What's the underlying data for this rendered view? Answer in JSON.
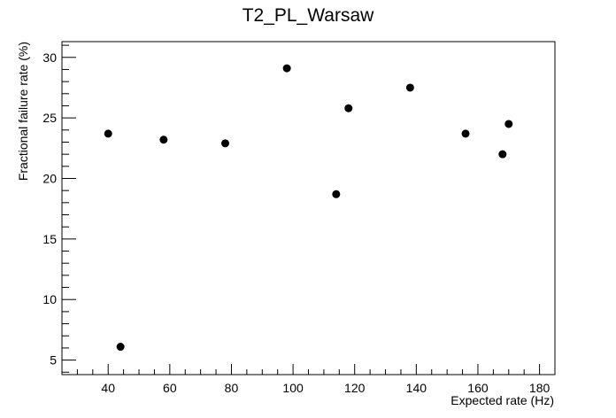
{
  "chart_data": {
    "type": "scatter",
    "title": "T2_PL_Warsaw",
    "xlabel": "Expected rate (Hz)",
    "ylabel": "Fractional failure rate (%)",
    "xlim": [
      25,
      185
    ],
    "ylim": [
      3.8,
      31.3
    ],
    "x_ticks": [
      40,
      60,
      80,
      100,
      120,
      140,
      160,
      180
    ],
    "y_ticks": [
      5,
      10,
      15,
      20,
      25,
      30
    ],
    "grid": false,
    "marker_color": "#000000",
    "points": [
      {
        "x": 40,
        "y": 23.7
      },
      {
        "x": 44,
        "y": 6.1
      },
      {
        "x": 58,
        "y": 23.2
      },
      {
        "x": 78,
        "y": 22.9
      },
      {
        "x": 98,
        "y": 29.1
      },
      {
        "x": 114,
        "y": 18.7
      },
      {
        "x": 118,
        "y": 25.8
      },
      {
        "x": 138,
        "y": 27.5
      },
      {
        "x": 156,
        "y": 23.7
      },
      {
        "x": 168,
        "y": 22.0
      },
      {
        "x": 170,
        "y": 24.5
      }
    ]
  }
}
